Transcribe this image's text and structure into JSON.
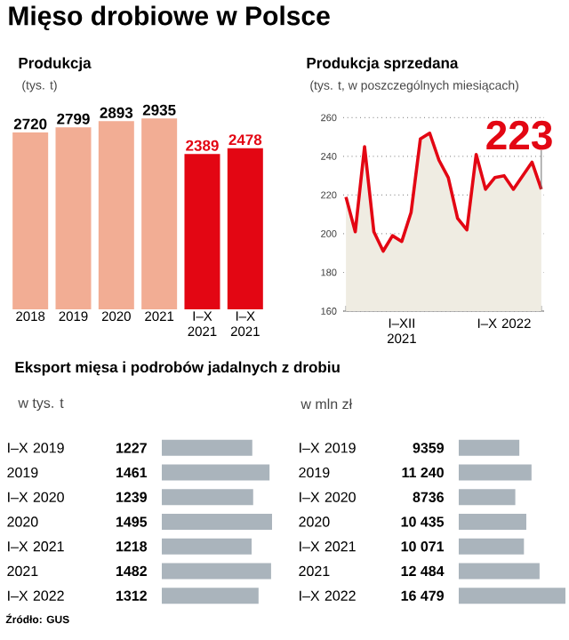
{
  "chart_data": [
    {
      "type": "bar",
      "title": "Produkcja",
      "subtitle": "(tys. t)",
      "annotations": [
        "Mięso drobiowe w Polsce"
      ],
      "categories": [
        "2018",
        "2019",
        "2020",
        "2021",
        "I–X 2021",
        "I–X 2021"
      ],
      "values": [
        2720,
        2799,
        2893,
        2935,
        2389,
        2478
      ],
      "colors": [
        "#f2ad94",
        "#f2ad94",
        "#f2ad94",
        "#f2ad94",
        "#e30613",
        "#e30613"
      ],
      "value_labels": [
        "2720",
        "2799",
        "2893",
        "2935",
        "2389",
        "2478"
      ]
    },
    {
      "type": "area",
      "title": "Produkcja sprzedana",
      "subtitle": "(tys. t, w poszczególnych miesiącach)",
      "x": [
        "2021-01",
        "2021-02",
        "2021-03",
        "2021-04",
        "2021-05",
        "2021-06",
        "2021-07",
        "2021-08",
        "2021-09",
        "2021-10",
        "2021-11",
        "2021-12",
        "2022-01",
        "2022-02",
        "2022-03",
        "2022-04",
        "2022-05",
        "2022-06",
        "2022-07",
        "2022-08",
        "2022-09",
        "2022-10"
      ],
      "xlim": [
        "2021-01",
        "2022-10"
      ],
      "xticks": [
        {
          "value": "2021-01",
          "label": null
        },
        {
          "value": "2021-02",
          "label": null
        },
        {
          "value": "2021-03",
          "label": null
        },
        {
          "value": "2021-04",
          "label": null
        },
        {
          "value": "2021-05",
          "label": null
        },
        {
          "value": "2021-06",
          "label": null
        },
        {
          "value": "2021-07",
          "label": "I–XII 2021"
        },
        {
          "value": "2021-08",
          "label": null
        },
        {
          "value": "2021-09",
          "label": null
        },
        {
          "value": "2021-10",
          "label": null
        },
        {
          "value": "2021-11",
          "label": null
        },
        {
          "value": "2021-12",
          "label": null
        },
        {
          "value": "2022-01",
          "label": null
        },
        {
          "value": "2022-02",
          "label": null
        },
        {
          "value": "2022-03",
          "label": null
        },
        {
          "value": "2022-04",
          "label": null
        },
        {
          "value": "2022-05",
          "label": null
        },
        {
          "value": "2022-06",
          "label": "I–X 2022"
        },
        {
          "value": "2022-07",
          "label": null
        },
        {
          "value": "2022-08",
          "label": null
        },
        {
          "value": "2022-09",
          "label": null
        },
        {
          "value": "2022-10",
          "label": null
        }
      ],
      "ylim": [
        160,
        262
      ],
      "yticks": [
        160,
        180,
        200,
        220,
        240,
        260
      ],
      "grid": "y",
      "marker": "none",
      "series": [
        {
          "color": "#e30613",
          "values": [
            219,
            201,
            245,
            201,
            191,
            199,
            196,
            211,
            249,
            252,
            238,
            229,
            208,
            202,
            241,
            223,
            229,
            230,
            223,
            230,
            237,
            223
          ],
          "value_labels": [
            null,
            null,
            null,
            null,
            null,
            null,
            null,
            null,
            null,
            null,
            null,
            null,
            null,
            null,
            null,
            null,
            null,
            null,
            null,
            null,
            null,
            "223"
          ]
        }
      ]
    },
    {
      "type": "bar",
      "orientation": "horizontal",
      "title": "Eksport mięsa i podrobów jadalnych z drobiu",
      "subtitle": "w tys. t",
      "categories": [
        "I–X 2019",
        "2019",
        "I–X 2020",
        "2020",
        "I–X 2021",
        "2021",
        "I–X 2022"
      ],
      "values": [
        1227,
        1461,
        1239,
        1495,
        1218,
        1482,
        1312
      ],
      "color": "#aab4bc",
      "data_labels": true
    },
    {
      "type": "bar",
      "orientation": "horizontal",
      "subtitle": "w mln zł",
      "annotations": [
        "Źródło: GUS"
      ],
      "categories": [
        "I–X 2019",
        "2019",
        "I–X 2020",
        "2020",
        "I–X 2021",
        "2021",
        "I–X 2022"
      ],
      "values": [
        9359,
        11240,
        8736,
        10435,
        10071,
        12484,
        16479
      ],
      "color": "#aab4bc",
      "value_labels": [
        "9359",
        "11 240",
        "8736",
        "10 435",
        "10 071",
        "12 484",
        "16 479"
      ]
    }
  ]
}
